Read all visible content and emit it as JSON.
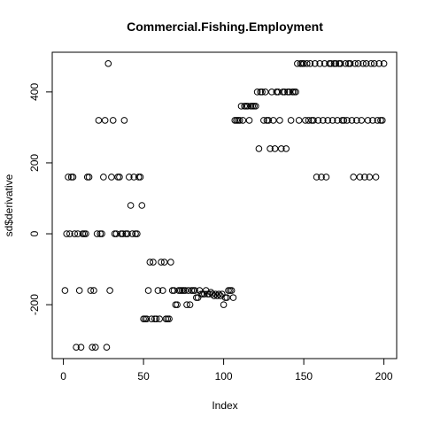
{
  "chart_data": {
    "type": "scatter",
    "title": "Commercial.Fishing.Employment",
    "x_label": "Index",
    "y_label": "sd$derivative",
    "x": [
      1,
      2,
      3,
      4,
      5,
      6,
      7,
      8,
      9,
      10,
      11,
      12,
      13,
      14,
      15,
      16,
      17,
      18,
      19,
      20,
      21,
      22,
      23,
      24,
      25,
      26,
      27,
      28,
      29,
      30,
      31,
      32,
      33,
      34,
      35,
      36,
      37,
      38,
      39,
      40,
      41,
      42,
      43,
      44,
      45,
      46,
      47,
      48,
      49,
      50,
      51,
      52,
      53,
      54,
      55,
      56,
      57,
      58,
      59,
      60,
      61,
      62,
      63,
      64,
      65,
      66,
      67,
      68,
      69,
      70,
      71,
      72,
      73,
      74,
      75,
      76,
      77,
      78,
      79,
      80,
      81,
      82,
      83,
      84,
      85,
      86,
      87,
      88,
      89,
      90,
      91,
      92,
      93,
      94,
      95,
      96,
      97,
      98,
      99,
      100,
      101,
      102,
      103,
      104,
      105,
      106,
      107,
      108,
      109,
      110,
      111,
      112,
      113,
      114,
      115,
      116,
      117,
      118,
      119,
      120,
      121,
      122,
      123,
      124,
      125,
      126,
      127,
      128,
      129,
      130,
      131,
      132,
      133,
      134,
      135,
      136,
      137,
      138,
      139,
      140,
      141,
      142,
      143,
      144,
      145,
      146,
      147,
      148,
      149,
      150,
      151,
      152,
      153,
      154,
      155,
      156,
      157,
      158,
      159,
      160,
      161,
      162,
      163,
      164,
      165,
      166,
      167,
      168,
      169,
      170,
      171,
      172,
      173,
      174,
      175,
      176,
      177,
      178,
      179,
      180,
      181,
      182,
      183,
      184,
      185,
      186,
      187,
      188,
      189,
      190,
      191,
      192,
      193,
      194,
      195,
      196,
      197,
      198,
      199,
      200
    ],
    "values": [
      -160,
      0,
      160,
      0,
      160,
      160,
      0,
      -320,
      0,
      -160,
      -320,
      0,
      0,
      0,
      160,
      160,
      -160,
      -320,
      -160,
      -320,
      0,
      320,
      0,
      0,
      160,
      320,
      -320,
      480,
      -160,
      160,
      320,
      0,
      0,
      160,
      160,
      0,
      0,
      320,
      0,
      0,
      160,
      80,
      0,
      160,
      0,
      0,
      160,
      160,
      80,
      -240,
      -240,
      -240,
      -160,
      -80,
      -240,
      -80,
      -240,
      -240,
      -160,
      -240,
      -80,
      -160,
      -80,
      -240,
      -240,
      -240,
      -80,
      -160,
      -160,
      -200,
      -200,
      -160,
      -160,
      -160,
      -160,
      -160,
      -200,
      -160,
      -200,
      -160,
      -160,
      -160,
      -180,
      -180,
      -160,
      -170,
      -170,
      -170,
      -160,
      -170,
      -170,
      -165,
      -170,
      -175,
      -170,
      -175,
      -170,
      -175,
      -170,
      -200,
      -180,
      -180,
      -160,
      -160,
      -160,
      -180,
      320,
      320,
      320,
      320,
      360,
      320,
      360,
      360,
      360,
      320,
      360,
      360,
      360,
      360,
      400,
      240,
      400,
      400,
      320,
      400,
      320,
      320,
      240,
      400,
      320,
      240,
      400,
      400,
      320,
      240,
      400,
      400,
      240,
      400,
      400,
      320,
      400,
      400,
      400,
      480,
      320,
      480,
      480,
      480,
      320,
      480,
      320,
      480,
      320,
      320,
      480,
      160,
      320,
      480,
      160,
      320,
      480,
      160,
      320,
      480,
      480,
      320,
      480,
      480,
      320,
      480,
      480,
      320,
      320,
      480,
      320,
      480,
      480,
      320,
      160,
      480,
      320,
      480,
      160,
      320,
      480,
      160,
      480,
      320,
      160,
      480,
      320,
      480,
      160,
      320,
      480,
      320,
      320,
      480
    ],
    "color": "#000000",
    "xlim": [
      -6.96,
      207.96
    ],
    "ylim": [
      -352,
      512
    ],
    "xticks": [
      0,
      50,
      100,
      150,
      200
    ],
    "yticks": [
      -200,
      0,
      200,
      400
    ]
  }
}
